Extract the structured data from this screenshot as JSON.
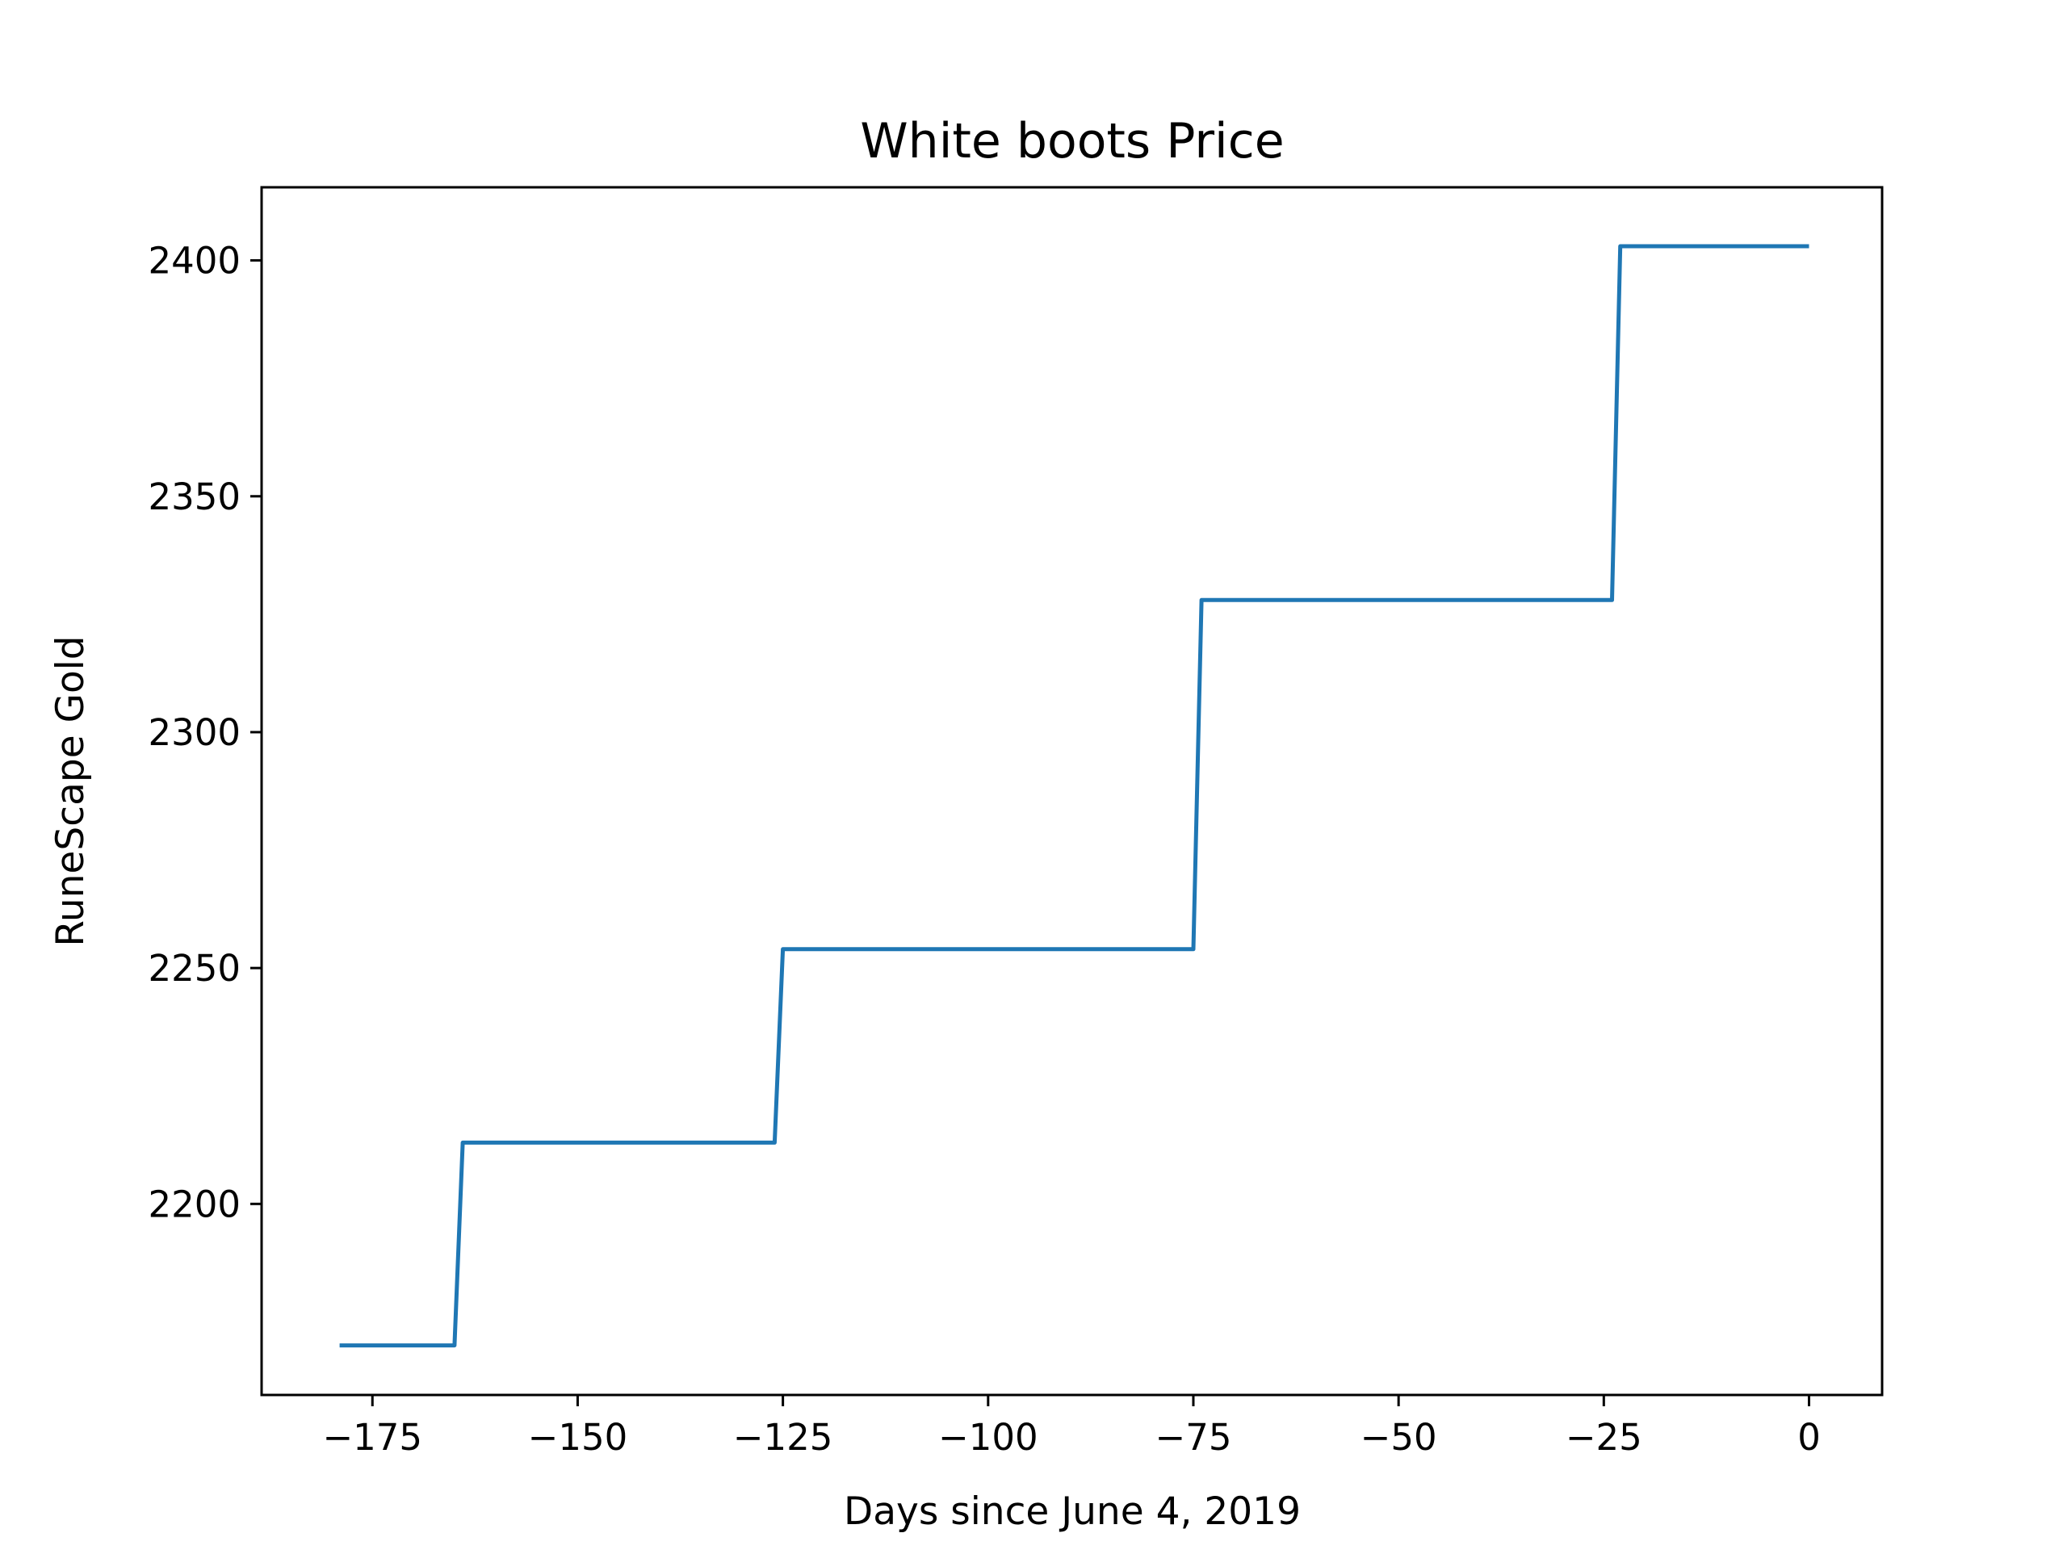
{
  "chart_data": {
    "type": "line",
    "title": "White boots Price",
    "xlabel": "Days since June 4, 2019",
    "ylabel": "RuneScape Gold",
    "xlim": [
      -188.5,
      8.9
    ],
    "ylim": [
      2159.5,
      2415.5
    ],
    "xticks": [
      -175,
      -150,
      -125,
      -100,
      -75,
      -50,
      -25,
      0
    ],
    "xtick_labels": [
      "−175",
      "−150",
      "−125",
      "−100",
      "−75",
      "−50",
      "−25",
      "0"
    ],
    "yticks": [
      2200,
      2250,
      2300,
      2350,
      2400
    ],
    "ytick_labels": [
      "2200",
      "2250",
      "2300",
      "2350",
      "2400"
    ],
    "grid": false,
    "series": [
      {
        "color": "#1f77b4",
        "x": [
          -179,
          -165,
          -164,
          -126,
          -125,
          -75,
          -74,
          -24,
          -23,
          0
        ],
        "y": [
          2170,
          2170,
          2213,
          2213,
          2254,
          2254,
          2328,
          2328,
          2403,
          2403
        ]
      }
    ]
  }
}
